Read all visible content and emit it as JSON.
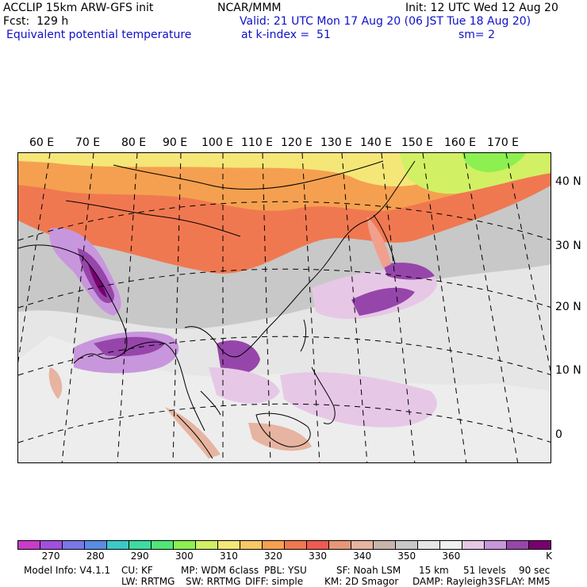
{
  "header": {
    "left_line1": "ACCLIP 15km ARW-GFS init",
    "center_line1": "NCAR/MMM",
    "right_line1": "Init: 12 UTC Wed 12 Aug 20",
    "left_line2": "Fcst:  129 h",
    "valid_line": "Valid: 21 UTC Mon 17 Aug 20 (06 JST Tue 18 Aug 20)",
    "field_name": "Equivalent potential temperature",
    "level": "at k-index =  51",
    "smoothing": "sm= 2"
  },
  "map": {
    "lon_labels": [
      "60 E",
      "70 E",
      "80 E",
      "90 E",
      "100 E",
      "110 E",
      "120 E",
      "130 E",
      "140 E",
      "150 E",
      "160 E",
      "170 E"
    ],
    "lat_labels": [
      "40 N",
      "30 N",
      "20 N",
      "10 N",
      "0"
    ]
  },
  "colorbar": {
    "unit": "K",
    "colors": [
      "#c83cc8",
      "#a050dc",
      "#7878e6",
      "#5a8ce6",
      "#3cc8c8",
      "#3cdca0",
      "#50e678",
      "#8cf050",
      "#d2f064",
      "#f5e678",
      "#fac864",
      "#f5a050",
      "#f07850",
      "#f05a50",
      "#e69678",
      "#e6b4a0",
      "#c8b4aa",
      "#c8c8c8",
      "#e6e6e6",
      "#f0f0f0",
      "#e6c8e6",
      "#c896dc",
      "#9646aa",
      "#78006e"
    ],
    "tick_labels": [
      "270",
      "280",
      "290",
      "300",
      "310",
      "320",
      "330",
      "340",
      "350",
      "360"
    ]
  },
  "footer": {
    "line1": [
      "Model Info: V4.1.1",
      "CU: KF",
      "MP: WDM 6class",
      "PBL: YSU",
      "SF: Noah LSM",
      "15 km",
      "51 levels",
      "90 sec"
    ],
    "line2": [
      "LW: RRTMG",
      "SW: RRTMG",
      "DIFF: simple",
      "KM: 2D Smagor",
      "DAMP: Rayleigh3",
      "SFLAY: MM5"
    ]
  }
}
